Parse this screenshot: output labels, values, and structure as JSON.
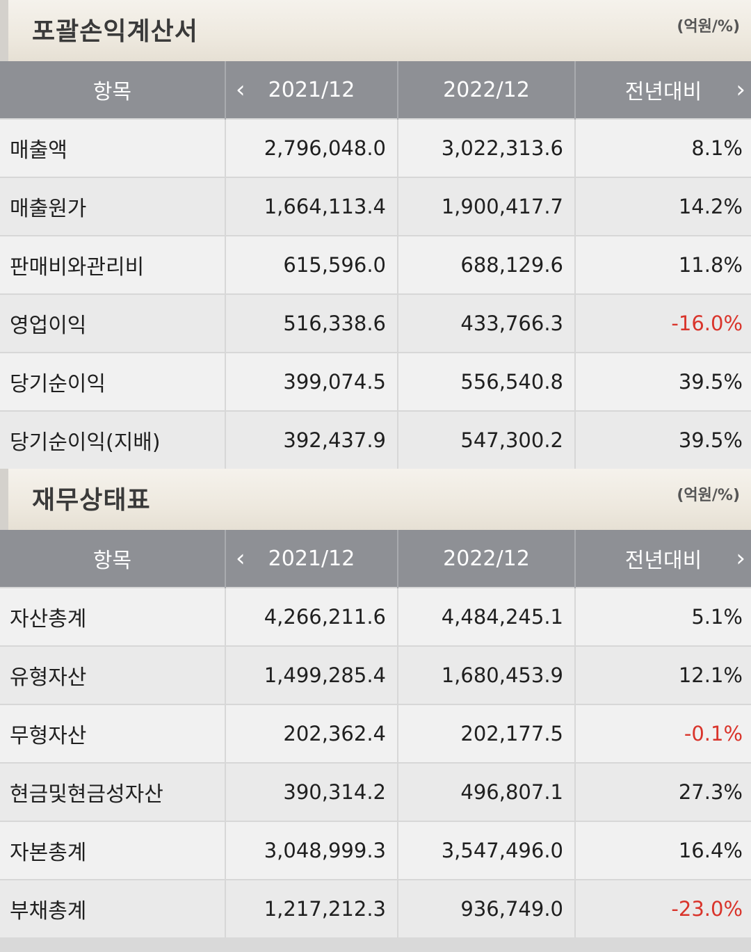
{
  "income_statement": {
    "title": "포괄손익계산서",
    "unit": "(억원/%)",
    "header": {
      "item": "항목",
      "col1": "2021/12",
      "col2": "2022/12",
      "col3": "전년대비",
      "prev_icon": "chevron-left-icon",
      "next_icon": "chevron-right-icon"
    },
    "rows": [
      {
        "label": "매출액",
        "v2021": "2,796,048.0",
        "v2022": "3,022,313.6",
        "yoy": "8.1%"
      },
      {
        "label": "매출원가",
        "v2021": "1,664,113.4",
        "v2022": "1,900,417.7",
        "yoy": "14.2%"
      },
      {
        "label": "판매비와관리비",
        "v2021": "615,596.0",
        "v2022": "688,129.6",
        "yoy": "11.8%"
      },
      {
        "label": "영업이익",
        "v2021": "516,338.6",
        "v2022": "433,766.3",
        "yoy": "-16.0%"
      },
      {
        "label": "당기순이익",
        "v2021": "399,074.5",
        "v2022": "556,540.8",
        "yoy": "39.5%"
      },
      {
        "label": "당기순이익(지배)",
        "v2021": "392,437.9",
        "v2022": "547,300.2",
        "yoy": "39.5%"
      }
    ]
  },
  "balance_sheet": {
    "title": "재무상태표",
    "unit": "(억원/%)",
    "header": {
      "item": "항목",
      "col1": "2021/12",
      "col2": "2022/12",
      "col3": "전년대비",
      "prev_icon": "chevron-left-icon",
      "next_icon": "chevron-right-icon"
    },
    "rows": [
      {
        "label": "자산총계",
        "v2021": "4,266,211.6",
        "v2022": "4,484,245.1",
        "yoy": "5.1%"
      },
      {
        "label": "유형자산",
        "v2021": "1,499,285.4",
        "v2022": "1,680,453.9",
        "yoy": "12.1%"
      },
      {
        "label": "무형자산",
        "v2021": "202,362.4",
        "v2022": "202,177.5",
        "yoy": "-0.1%"
      },
      {
        "label": "현금및현금성자산",
        "v2021": "390,314.2",
        "v2022": "496,807.1",
        "yoy": "27.3%"
      },
      {
        "label": "자본총계",
        "v2021": "3,048,999.3",
        "v2022": "3,547,496.0",
        "yoy": "16.4%"
      },
      {
        "label": "부채총계",
        "v2021": "1,217,212.3",
        "v2022": "936,749.0",
        "yoy": "-23.0%"
      }
    ]
  },
  "colors": {
    "header_bg": "#8e9095",
    "negative": "#d9342b",
    "title_bg": "#eee9df"
  }
}
